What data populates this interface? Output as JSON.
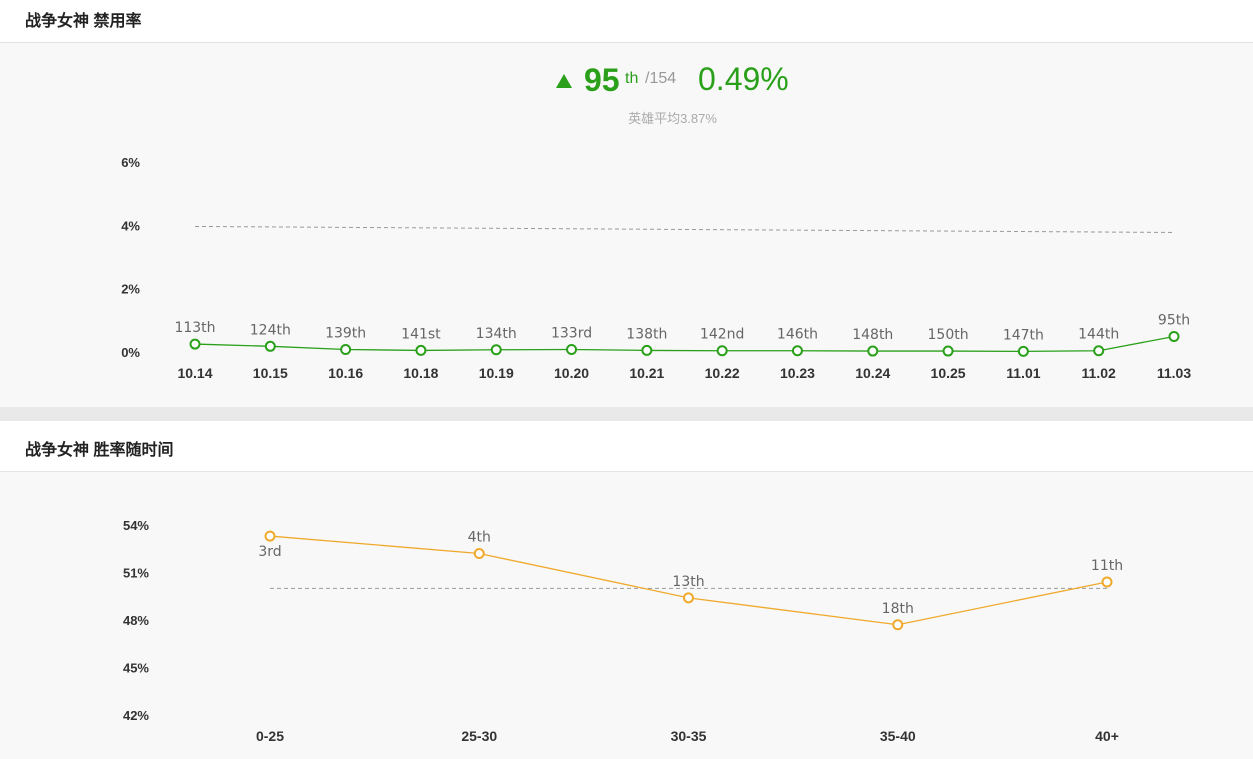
{
  "ban_section": {
    "title": "战争女神 禁用率"
  },
  "ban_stats": {
    "rank": "95",
    "rank_suffix": "th",
    "rank_total": "/154",
    "rate": "0.49%",
    "avg_text": "英雄平均3.87%"
  },
  "win_section": {
    "title": "战争女神 胜率随时间"
  },
  "colors": {
    "ban_line": "#2aa01a",
    "win_line": "#f0a92c",
    "avg_line": "#999999"
  },
  "chart_data": [
    {
      "type": "line",
      "title": "战争女神 禁用率",
      "categories": [
        "10.14",
        "10.15",
        "10.16",
        "10.18",
        "10.19",
        "10.20",
        "10.21",
        "10.22",
        "10.23",
        "10.24",
        "10.25",
        "11.01",
        "11.02",
        "11.03"
      ],
      "values": [
        0.25,
        0.18,
        0.08,
        0.05,
        0.07,
        0.08,
        0.05,
        0.04,
        0.04,
        0.03,
        0.03,
        0.02,
        0.04,
        0.49
      ],
      "labels": [
        "113th",
        "124th",
        "139th",
        "141st",
        "134th",
        "133rd",
        "138th",
        "142nd",
        "146th",
        "148th",
        "150th",
        "147th",
        "144th",
        "95th"
      ],
      "yticks": [
        "6%",
        "4%",
        "2%",
        "0%"
      ],
      "ylim": [
        0,
        6
      ],
      "average": 3.87
    },
    {
      "type": "line",
      "title": "战争女神 胜率随时间",
      "categories": [
        "0-25",
        "25-30",
        "30-35",
        "35-40",
        "40+"
      ],
      "values": [
        53.3,
        52.2,
        49.4,
        47.7,
        50.4
      ],
      "labels": [
        "3rd",
        "4th",
        "13th",
        "18th",
        "11th"
      ],
      "yticks": [
        "54%",
        "51%",
        "48%",
        "45%",
        "42%"
      ],
      "ylim": [
        42,
        54
      ],
      "average": 50.0
    }
  ]
}
